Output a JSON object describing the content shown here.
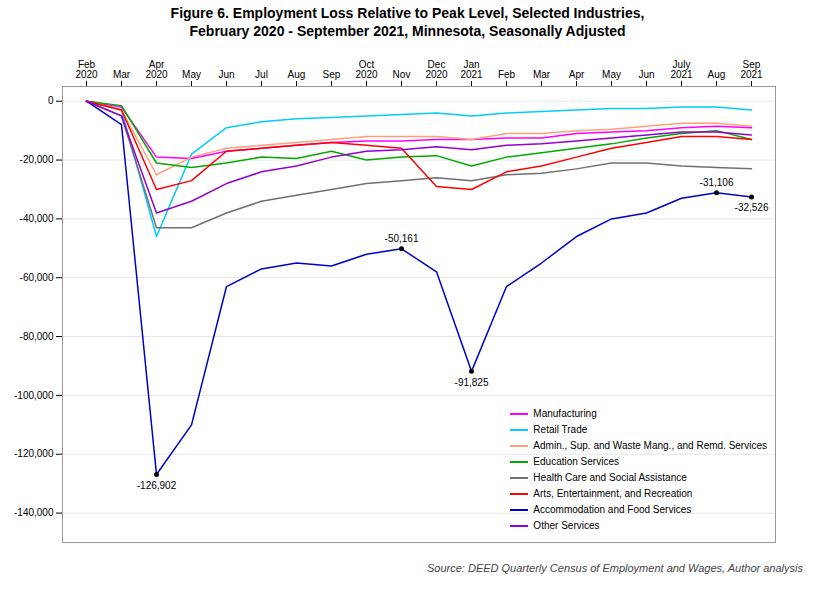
{
  "chart_data": {
    "type": "line",
    "title": "Figure 6. Employment Loss Relative to Peak Level, Selected Industries,\nFebruary 2020 - September 2021, Minnesota, Seasonally Adjusted",
    "source": "Source: DEED Quarterly Census of Employment and Wages, Author analysis",
    "categories": [
      "Feb\n2020",
      "Mar",
      "Apr\n2020",
      "May",
      "Jun",
      "Jul",
      "Aug",
      "Sep",
      "Oct\n2020",
      "Nov",
      "Dec\n2020",
      "Jan\n2021",
      "Feb",
      "Mar",
      "Apr",
      "May",
      "Jun",
      "July\n2021",
      "Aug",
      "Sep\n2021"
    ],
    "series": [
      {
        "name": "Manufacturing",
        "color": "#FF00FF",
        "values": [
          0,
          -2000,
          -19000,
          -19500,
          -17000,
          -16000,
          -15000,
          -14000,
          -13500,
          -13500,
          -13000,
          -13000,
          -12500,
          -12500,
          -11000,
          -10500,
          -10000,
          -9000,
          -8500,
          -9000
        ]
      },
      {
        "name": "Retail Trade",
        "color": "#00CCFF",
        "values": [
          0,
          -3000,
          -46000,
          -18000,
          -9000,
          -7000,
          -6000,
          -5500,
          -5000,
          -4500,
          -4000,
          -5000,
          -4000,
          -3500,
          -3000,
          -2500,
          -2500,
          -2000,
          -2000,
          -3000
        ]
      },
      {
        "name": "Admin., Sup. and Waste Mang., and Remd. Services",
        "color": "#FFA07A",
        "values": [
          0,
          -3000,
          -25000,
          -19000,
          -16000,
          -15000,
          -14000,
          -13000,
          -12000,
          -12000,
          -12000,
          -13000,
          -11000,
          -11000,
          -10000,
          -9500,
          -8500,
          -7500,
          -7500,
          -8500
        ]
      },
      {
        "name": "Education Services",
        "color": "#00AA00",
        "values": [
          0,
          -1500,
          -21000,
          -22500,
          -21000,
          -19000,
          -19500,
          -17000,
          -20000,
          -19000,
          -18500,
          -22000,
          -19000,
          -17500,
          -16000,
          -14500,
          -12500,
          -11000,
          -10000,
          -13000
        ]
      },
      {
        "name": "Health Care and Social Assistance",
        "color": "#707070",
        "values": [
          0,
          -5000,
          -43000,
          -43000,
          -38000,
          -34000,
          -32000,
          -30000,
          -28000,
          -27000,
          -26000,
          -27000,
          -25000,
          -24500,
          -23000,
          -21000,
          -21000,
          -22000,
          -22500,
          -23000
        ]
      },
      {
        "name": "Arts, Entertainment, and Recreation",
        "color": "#FF0000",
        "values": [
          0,
          -3000,
          -30000,
          -27000,
          -17000,
          -16000,
          -15000,
          -14000,
          -15000,
          -16000,
          -29000,
          -30000,
          -24000,
          -22000,
          -19000,
          -16000,
          -14000,
          -12000,
          -12000,
          -13000
        ]
      },
      {
        "name": "Accommodation and Food Services",
        "color": "#0000CC",
        "values": [
          0,
          -8000,
          -126902,
          -110000,
          -63000,
          -57000,
          -55000,
          -56000,
          -52000,
          -50161,
          -58000,
          -91825,
          -63000,
          -55000,
          -46000,
          -40000,
          -38000,
          -33000,
          -31106,
          -32526
        ]
      },
      {
        "name": "Other Services",
        "color": "#9400D3",
        "values": [
          0,
          -5000,
          -38000,
          -34000,
          -28000,
          -24000,
          -22000,
          -19000,
          -17000,
          -16500,
          -15500,
          -16500,
          -15000,
          -14500,
          -13500,
          -12500,
          -11500,
          -10500,
          -10500,
          -11500
        ]
      }
    ],
    "ylim": [
      -150000,
      5000
    ],
    "yticks": [
      0,
      {
        "value": -20000,
        "label": "-20,000"
      },
      {
        "value": -40000,
        "label": "-40,000"
      },
      {
        "value": -60000,
        "label": "-60,000"
      },
      {
        "value": -80000,
        "label": "-80,000"
      },
      {
        "value": -100000,
        "label": "-100,000"
      },
      {
        "value": -120000,
        "label": "-120,000"
      },
      {
        "value": -140000,
        "label": "-140,000"
      }
    ],
    "grid": true,
    "legend": "lower right",
    "annotations": [
      {
        "label": "-126,902",
        "x": 2,
        "value": -126902
      },
      {
        "label": "-50,161",
        "x": 9,
        "value": -50161
      },
      {
        "label": "-91,825",
        "x": 11,
        "value": -91825
      },
      {
        "label": "-31,106",
        "x": 18,
        "value": -31106
      },
      {
        "label": "-32,526",
        "x": 19,
        "value": -32526
      }
    ]
  }
}
